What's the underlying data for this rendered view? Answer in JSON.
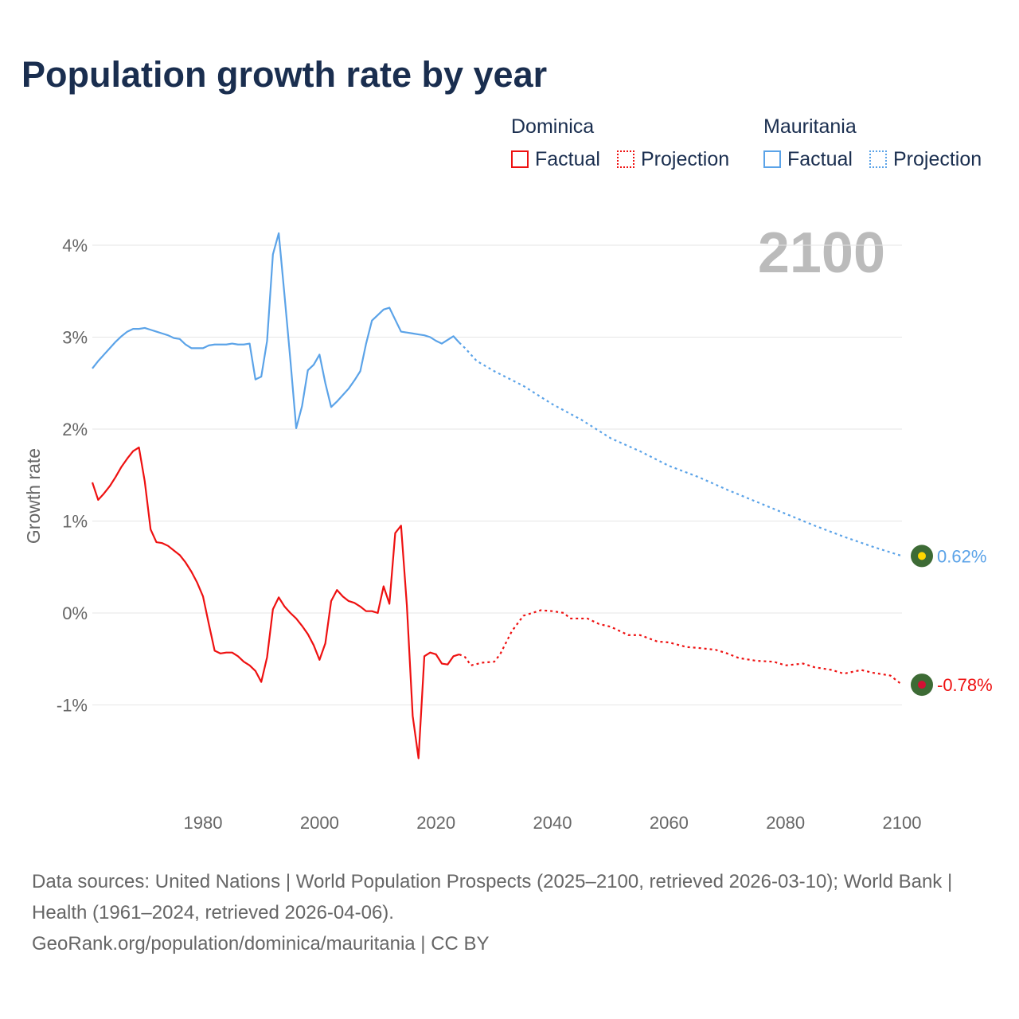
{
  "title": "Population growth rate by year",
  "legend": {
    "groups": [
      {
        "country": "Dominica",
        "color": "#ee1111",
        "factual": "Factual",
        "projection": "Projection"
      },
      {
        "country": "Mauritania",
        "color": "#5ba3e8",
        "factual": "Factual",
        "projection": "Projection"
      }
    ]
  },
  "year_label": "2100",
  "sources": {
    "line1": "Data sources: United Nations | World Population Prospects (2025–2100, retrieved 2026-03-10); World Bank | Health (1961–2024, retrieved 2026-04-06).",
    "line2": "GeoRank.org/population/dominica/mauritania | CC BY"
  },
  "chart_data": {
    "type": "line",
    "title": "Population growth rate by year",
    "xlabel": "",
    "ylabel": "Growth rate",
    "xlim": [
      1961,
      2100
    ],
    "ylim": [
      -1.9,
      4.3
    ],
    "x_ticks": [
      1980,
      2000,
      2020,
      2040,
      2060,
      2080,
      2100
    ],
    "x_tick_labels": [
      "1980",
      "2000",
      "2020",
      "2040",
      "2060",
      "2080",
      "2100"
    ],
    "y_ticks": [
      -1,
      0,
      1,
      2,
      3,
      4
    ],
    "y_tick_labels": [
      "-1%",
      "0%",
      "1%",
      "2%",
      "3%",
      "4%"
    ],
    "grid": true,
    "legend_position": "top-right",
    "series": [
      {
        "name": "Dominica",
        "color": "#ee1111",
        "end_label": "-0.78%",
        "factual": {
          "start_year": 1961,
          "values": [
            1.42,
            1.23,
            1.3,
            1.38,
            1.48,
            1.59,
            1.68,
            1.76,
            1.8,
            1.43,
            0.91,
            0.77,
            0.76,
            0.73,
            0.68,
            0.63,
            0.55,
            0.45,
            0.33,
            0.18,
            -0.12,
            -0.41,
            -0.44,
            -0.43,
            -0.43,
            -0.47,
            -0.53,
            -0.57,
            -0.63,
            -0.75,
            -0.48,
            0.04,
            0.17,
            0.07,
            0.0,
            -0.06,
            -0.14,
            -0.23,
            -0.35,
            -0.51,
            -0.33,
            0.13,
            0.25,
            0.18,
            0.13,
            0.11,
            0.07,
            0.02,
            0.02,
            0.0,
            0.29,
            0.1,
            0.87,
            0.95,
            0.08,
            -1.12,
            -1.58,
            -0.47,
            -0.43,
            -0.45,
            -0.55,
            -0.56,
            -0.47,
            -0.45
          ]
        },
        "projection": {
          "x": [
            2024,
            2025,
            2026,
            2028,
            2030,
            2031,
            2033,
            2035,
            2038,
            2040,
            2042,
            2043,
            2046,
            2048,
            2050,
            2053,
            2055,
            2058,
            2060,
            2063,
            2065,
            2068,
            2070,
            2072,
            2075,
            2078,
            2080,
            2083,
            2085,
            2088,
            2090,
            2093,
            2095,
            2098,
            2100
          ],
          "values": [
            -0.45,
            -0.48,
            -0.57,
            -0.54,
            -0.53,
            -0.45,
            -0.2,
            -0.03,
            0.03,
            0.02,
            0.0,
            -0.06,
            -0.06,
            -0.12,
            -0.15,
            -0.24,
            -0.24,
            -0.31,
            -0.32,
            -0.37,
            -0.38,
            -0.4,
            -0.44,
            -0.49,
            -0.52,
            -0.53,
            -0.57,
            -0.55,
            -0.59,
            -0.62,
            -0.66,
            -0.62,
            -0.65,
            -0.68,
            -0.78
          ]
        }
      },
      {
        "name": "Mauritania",
        "color": "#5ba3e8",
        "end_label": "0.62%",
        "factual": {
          "start_year": 1961,
          "values": [
            2.66,
            2.74,
            2.81,
            2.88,
            2.95,
            3.01,
            3.06,
            3.09,
            3.09,
            3.1,
            3.08,
            3.06,
            3.04,
            3.02,
            2.99,
            2.98,
            2.92,
            2.88,
            2.88,
            2.88,
            2.91,
            2.92,
            2.92,
            2.92,
            2.93,
            2.92,
            2.92,
            2.93,
            2.54,
            2.57,
            2.96,
            3.9,
            4.13,
            3.45,
            2.75,
            2.01,
            2.25,
            2.64,
            2.7,
            2.81,
            2.5,
            2.24,
            2.3,
            2.37,
            2.44,
            2.53,
            2.63,
            2.93,
            3.18,
            3.24,
            3.3,
            3.32,
            3.19,
            3.06,
            3.05,
            3.04,
            3.03,
            3.02,
            3.0,
            2.96,
            2.93,
            2.97,
            3.01,
            2.94
          ]
        },
        "projection": {
          "x": [
            2024,
            2025,
            2027,
            2030,
            2035,
            2040,
            2045,
            2050,
            2055,
            2060,
            2065,
            2070,
            2075,
            2080,
            2085,
            2090,
            2095,
            2100
          ],
          "values": [
            2.94,
            2.88,
            2.74,
            2.63,
            2.47,
            2.27,
            2.1,
            1.9,
            1.76,
            1.6,
            1.48,
            1.34,
            1.21,
            1.08,
            0.95,
            0.83,
            0.72,
            0.62
          ]
        }
      }
    ]
  }
}
